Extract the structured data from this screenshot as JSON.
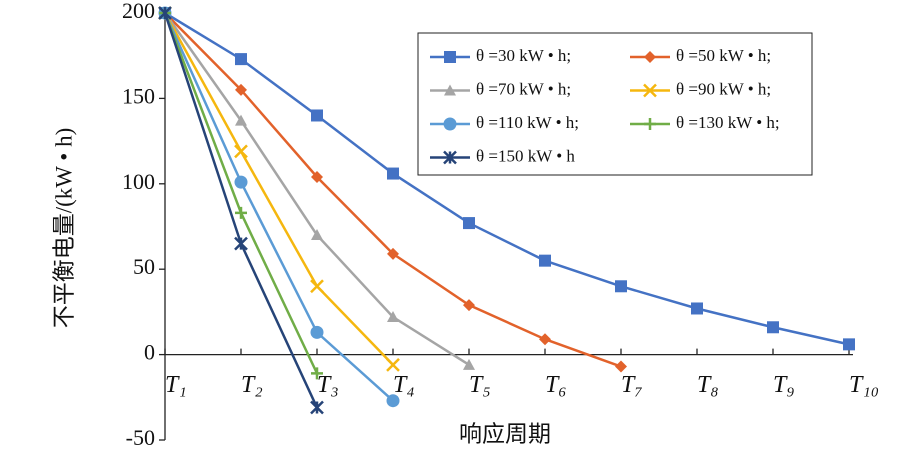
{
  "chart_data": {
    "type": "line",
    "x_label": "响应周期",
    "y_label": "不平衡电量/(kW • h)",
    "categories": [
      "T₁",
      "T₂",
      "T₃",
      "T₄",
      "T₅",
      "T₆",
      "T₇",
      "T₈",
      "T₉",
      "T₁₀"
    ],
    "ylim": [
      -50,
      200
    ],
    "yticks": [
      -50,
      0,
      50,
      100,
      150,
      200
    ],
    "series": [
      {
        "name": "θ =30 kW • h;",
        "color": "#4472c4",
        "marker": "square",
        "values": [
          200,
          173,
          140,
          106,
          77,
          55,
          40,
          27,
          16,
          6
        ]
      },
      {
        "name": "θ =50 kW • h;",
        "color": "#e2622b",
        "marker": "diamond",
        "values": [
          200,
          155,
          104,
          59,
          29,
          9,
          -7,
          null,
          null,
          null
        ]
      },
      {
        "name": "θ =70 kW • h;",
        "color": "#a5a5a5",
        "marker": "triangle",
        "values": [
          200,
          137,
          70,
          22,
          -6,
          null,
          null,
          null,
          null,
          null
        ]
      },
      {
        "name": "θ =90 kW • h;",
        "color": "#f5b70f",
        "marker": "x",
        "values": [
          200,
          119,
          40,
          -6,
          null,
          null,
          null,
          null,
          null,
          null
        ]
      },
      {
        "name": "θ =110 kW • h;",
        "color": "#5b9bd5",
        "marker": "circle",
        "values": [
          200,
          101,
          13,
          -27,
          null,
          null,
          null,
          null,
          null,
          null
        ]
      },
      {
        "name": "θ =130 kW • h;",
        "color": "#70ad47",
        "marker": "plus",
        "values": [
          200,
          83,
          -11,
          null,
          null,
          null,
          null,
          null,
          null,
          null
        ]
      },
      {
        "name": "θ =150 kW • h",
        "color": "#264478",
        "marker": "star",
        "values": [
          200,
          65,
          -31,
          null,
          null,
          null,
          null,
          null,
          null,
          null
        ]
      }
    ]
  }
}
